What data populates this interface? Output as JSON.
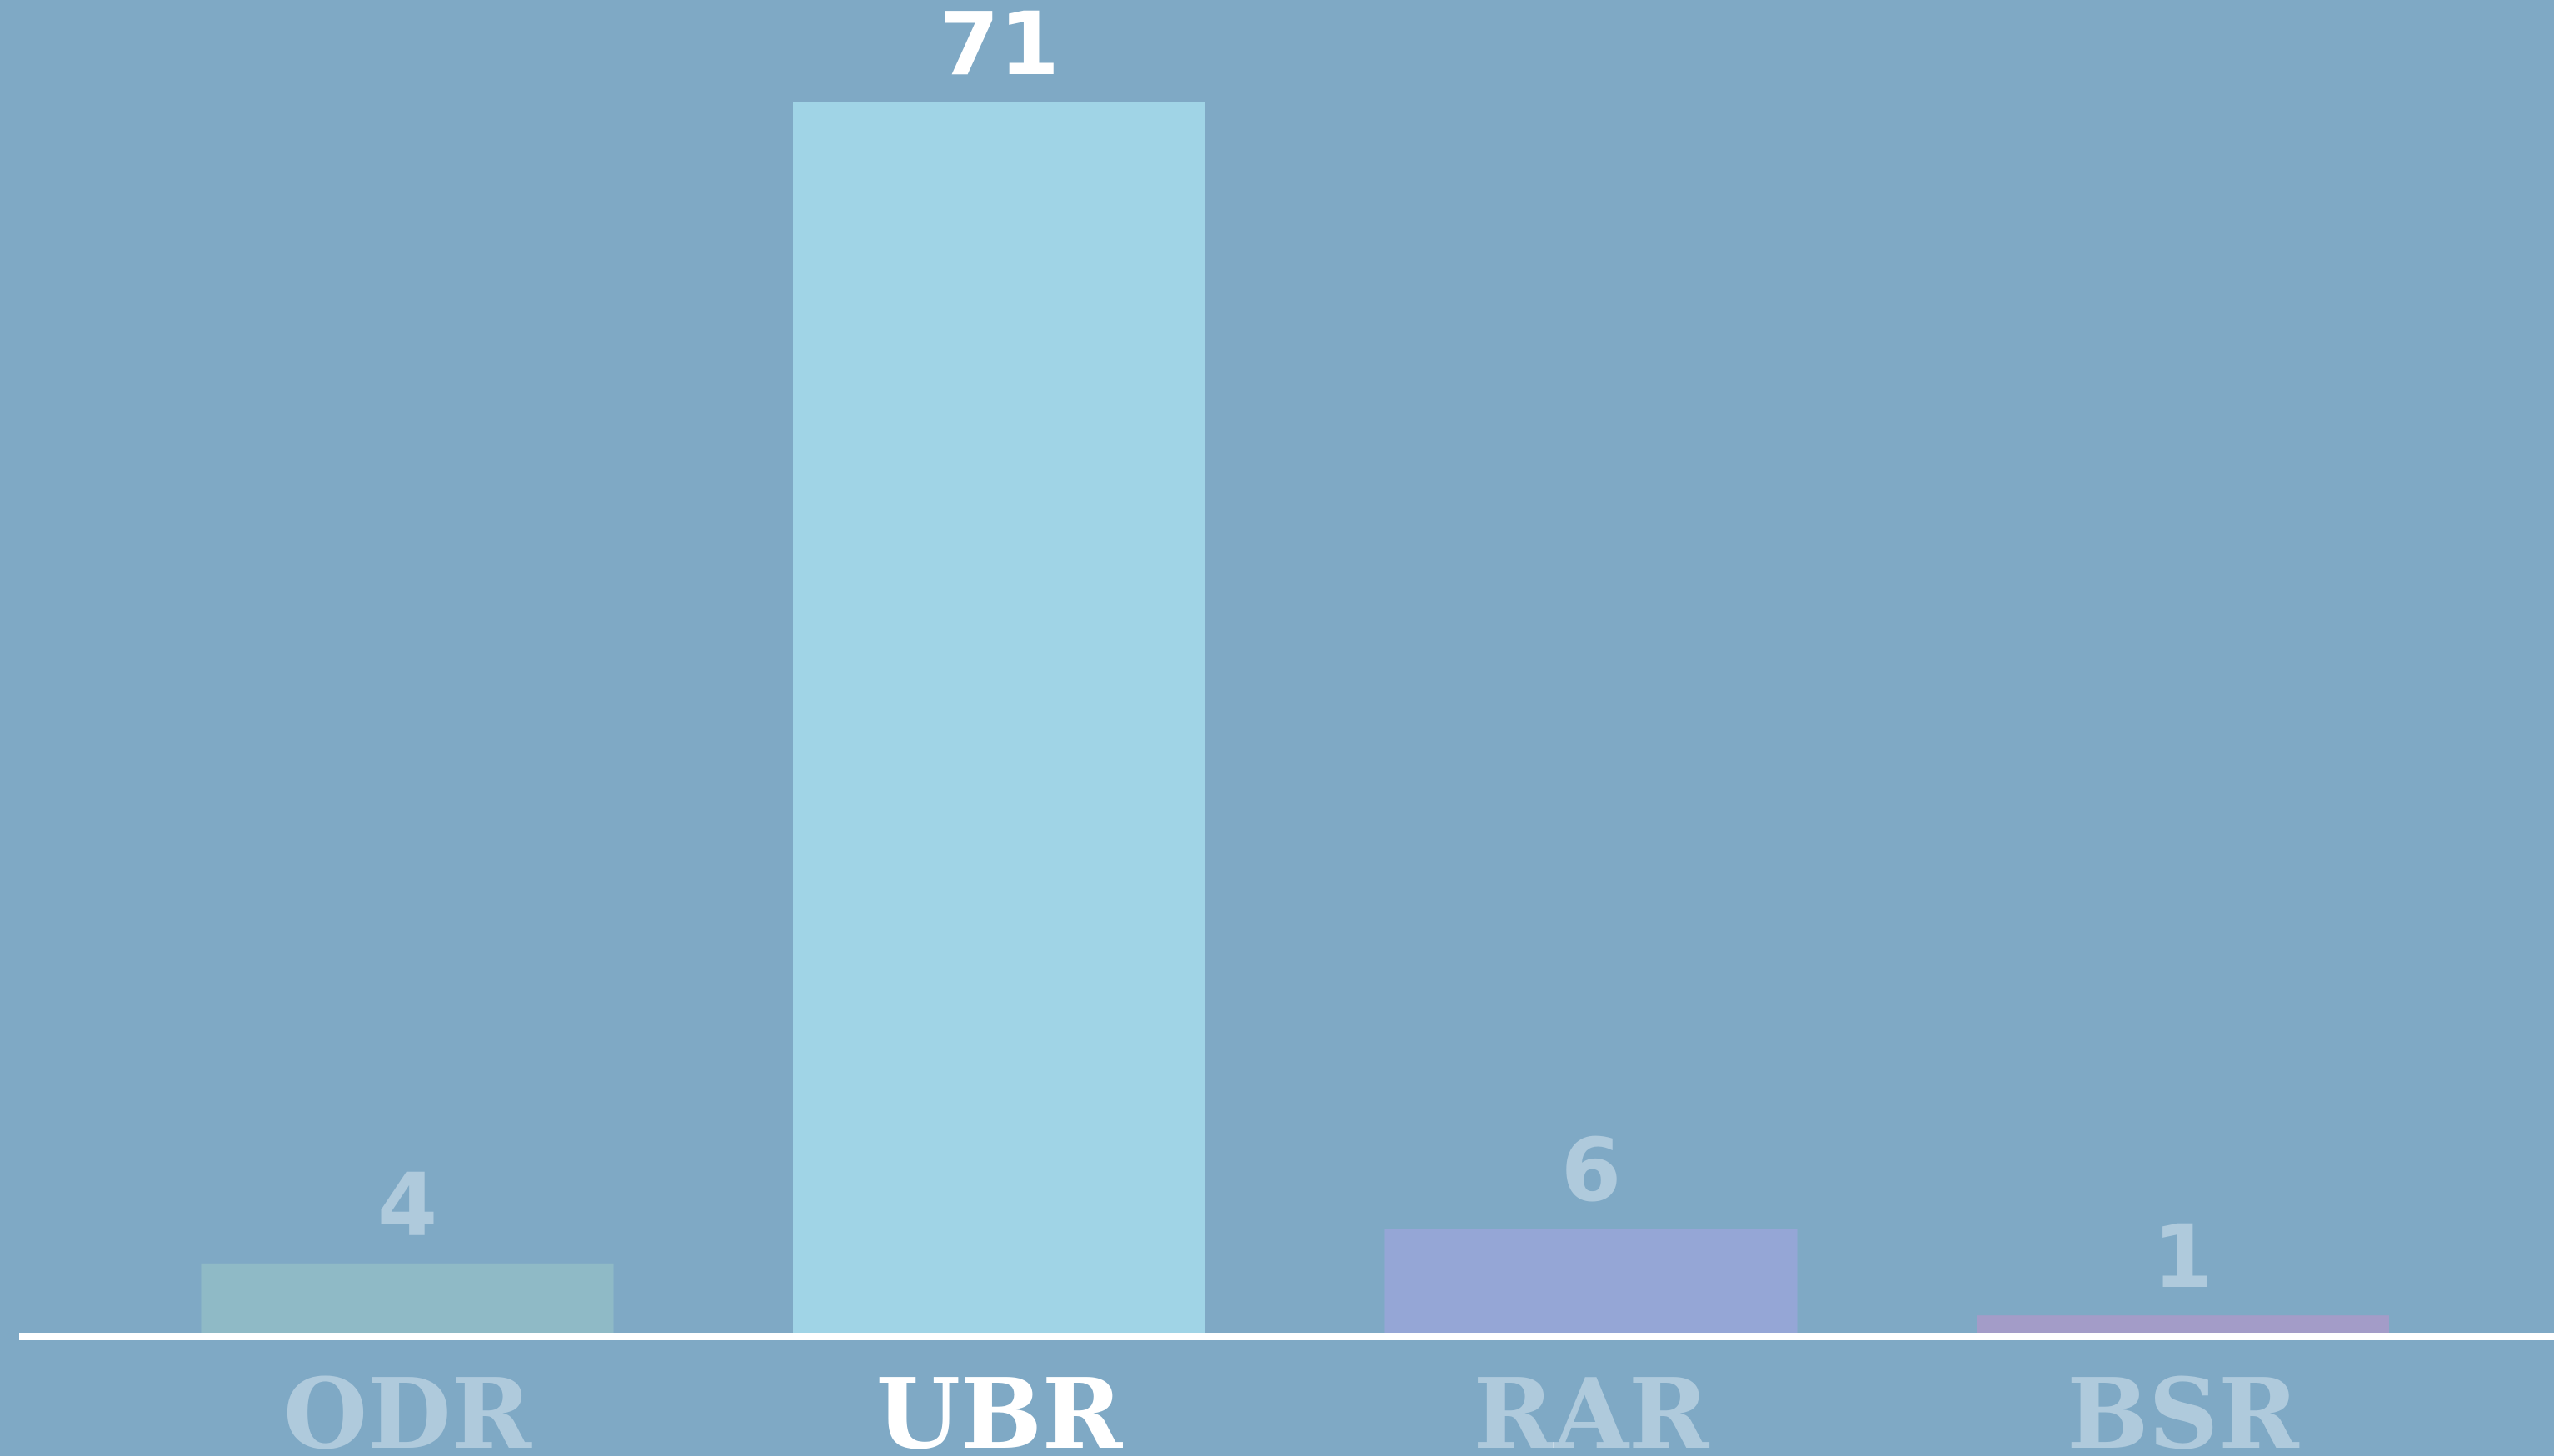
{
  "chart_data": {
    "type": "bar",
    "categories": [
      "ODR",
      "UBR",
      "RAR",
      "BSR"
    ],
    "values": [
      4,
      71,
      6,
      1
    ],
    "colors": [
      "#8fbac6",
      "#a0d4e6",
      "#95a6d6",
      "#a39cc8"
    ],
    "highlight": "UBR",
    "ylim": [
      0,
      71
    ]
  }
}
